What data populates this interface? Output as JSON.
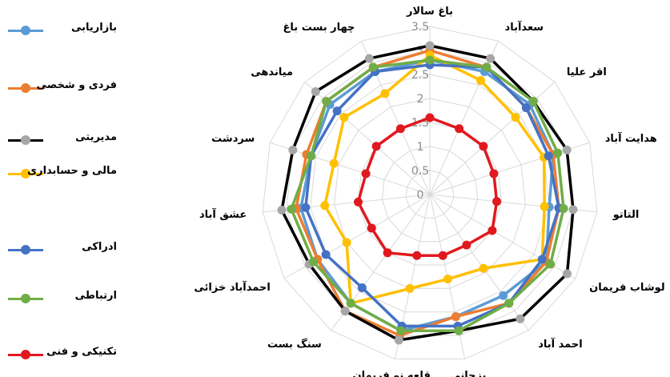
{
  "chart_data": {
    "type": "radar",
    "categories": [
      "باغ سالار",
      "سعدآباد",
      "اقر علیا",
      "هدایت آباد",
      "التاتو",
      "لوشاب فریمان",
      "احمد آباد",
      "بزجانی",
      "قلعه نو فریمان",
      "سنگ بست",
      "احمدآباد خزائی",
      "عشق آباد",
      "سردشت",
      "میاندهی",
      "چهار بست باغ"
    ],
    "r_ticks": [
      "0",
      "0.5",
      "1",
      "1.5",
      "2",
      "2.5",
      "3",
      "3.5"
    ],
    "rlim": [
      0,
      3.5
    ],
    "legend_position": "left",
    "series": [
      {
        "name": "بازاریابی",
        "color": "#5b9bd5",
        "values": [
          2.8,
          2.8,
          2.8,
          2.7,
          2.5,
          2.8,
          2.6,
          2.6,
          2.9,
          2.8,
          2.7,
          2.7,
          2.6,
          2.8,
          2.8
        ]
      },
      {
        "name": "فردی و شخصی",
        "color": "#ed7d31",
        "values": [
          3.0,
          2.9,
          2.7,
          2.7,
          2.7,
          2.8,
          2.8,
          2.6,
          3.0,
          3.0,
          2.7,
          2.8,
          2.7,
          2.9,
          2.9
        ]
      },
      {
        "name": "مدیریتی",
        "color": "#000000",
        "values": [
          3.1,
          3.1,
          2.9,
          3.0,
          3.0,
          3.3,
          3.2,
          2.9,
          3.1,
          3.0,
          2.9,
          3.1,
          3.0,
          3.2,
          3.1
        ]
      },
      {
        "name": "مالی و حسابداری",
        "color": "#ffc000",
        "values": [
          2.9,
          2.6,
          2.4,
          2.5,
          2.4,
          2.7,
          1.9,
          1.8,
          2.0,
          2.8,
          2.0,
          2.2,
          2.1,
          2.4,
          2.3
        ]
      },
      {
        "name": "ادراکی",
        "color": "#4472c4",
        "values": [
          2.7,
          2.9,
          2.7,
          2.6,
          2.7,
          2.7,
          2.8,
          2.8,
          2.8,
          2.4,
          2.5,
          2.6,
          2.6,
          2.6,
          2.8
        ]
      },
      {
        "name": "ارتباطی",
        "color": "#70ad47",
        "values": [
          2.8,
          2.9,
          2.9,
          2.8,
          2.8,
          2.9,
          2.8,
          2.9,
          2.9,
          2.8,
          2.8,
          2.9,
          2.6,
          2.9,
          2.9
        ]
      },
      {
        "name": "تکنیکی و فنی",
        "color": "#e0191f",
        "values": [
          1.6,
          1.5,
          1.5,
          1.4,
          1.4,
          1.5,
          1.3,
          1.3,
          1.3,
          1.5,
          1.4,
          1.5,
          1.4,
          1.5,
          1.5
        ]
      }
    ]
  }
}
